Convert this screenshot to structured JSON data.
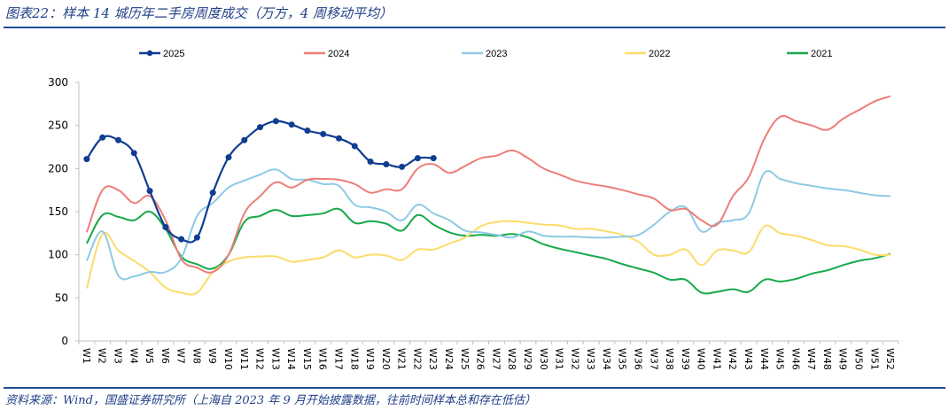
{
  "header": {
    "title": "图表22：样本 14 城历年二手房周度成交（万方，4 周移动平均）"
  },
  "footer": {
    "source": "资料来源：Wind，国盛证券研究所（上海自 2023 年 9 月开始披露数据，往前时间样本总和存在低估）"
  },
  "chart_data": {
    "type": "line",
    "title": "样本 14 城历年二手房周度成交（万方，4 周移动平均）",
    "xlabel": "",
    "ylabel": "",
    "ylim": [
      0,
      300
    ],
    "yticks": [
      0,
      50,
      100,
      150,
      200,
      250,
      300
    ],
    "grid": false,
    "legend_position": "top",
    "categories": [
      "W1",
      "W2",
      "W3",
      "W4",
      "W5",
      "W6",
      "W7",
      "W8",
      "W9",
      "W10",
      "W11",
      "W12",
      "W13",
      "W14",
      "W15",
      "W16",
      "W17",
      "W18",
      "W19",
      "W20",
      "W21",
      "W22",
      "W23",
      "W24",
      "W25",
      "W26",
      "W27",
      "W28",
      "W29",
      "W30",
      "W31",
      "W32",
      "W33",
      "W34",
      "W35",
      "W36",
      "W37",
      "W38",
      "W39",
      "W40",
      "W41",
      "W42",
      "W43",
      "W44",
      "W45",
      "W46",
      "W47",
      "W48",
      "W49",
      "W50",
      "W51",
      "W52"
    ],
    "series": [
      {
        "name": "2025",
        "color": "#0f3d91",
        "markers": true,
        "values": [
          211,
          236,
          233,
          218,
          174,
          132,
          118,
          120,
          172,
          213,
          233,
          248,
          255,
          251,
          244,
          240,
          235,
          226,
          208,
          205,
          202,
          212,
          212
        ]
      },
      {
        "name": "2024",
        "color": "#ee7d78",
        "markers": false,
        "values": [
          126,
          175,
          175,
          160,
          168,
          140,
          95,
          85,
          80,
          100,
          148,
          168,
          184,
          178,
          187,
          188,
          187,
          182,
          172,
          176,
          176,
          200,
          205,
          195,
          203,
          212,
          215,
          221,
          212,
          200,
          193,
          186,
          182,
          179,
          175,
          170,
          165,
          152,
          153,
          140,
          135,
          168,
          190,
          235,
          260,
          255,
          250,
          245,
          258,
          268,
          278,
          284
        ]
      },
      {
        "name": "2023",
        "color": "#8dcae4",
        "markers": false,
        "values": [
          93,
          127,
          76,
          75,
          80,
          80,
          96,
          145,
          160,
          178,
          186,
          193,
          199,
          188,
          187,
          182,
          180,
          158,
          155,
          150,
          140,
          158,
          148,
          140,
          128,
          126,
          123,
          120,
          127,
          122,
          121,
          121,
          120,
          120,
          121,
          123,
          135,
          150,
          155,
          127,
          137,
          140,
          148,
          195,
          188,
          183,
          180,
          177,
          175,
          172,
          169,
          168
        ]
      },
      {
        "name": "2022",
        "color": "#fbdc6a",
        "markers": false,
        "values": [
          61,
          124,
          105,
          93,
          80,
          62,
          56,
          56,
          80,
          92,
          97,
          98,
          98,
          92,
          94,
          97,
          105,
          97,
          100,
          99,
          94,
          106,
          106,
          113,
          120,
          133,
          138,
          139,
          137,
          135,
          134,
          130,
          130,
          127,
          123,
          115,
          100,
          100,
          106,
          88,
          105,
          105,
          103,
          133,
          125,
          122,
          117,
          111,
          110,
          106,
          100,
          100
        ]
      },
      {
        "name": "2021",
        "color": "#16a94a",
        "markers": false,
        "values": [
          113,
          146,
          144,
          140,
          150,
          130,
          98,
          89,
          84,
          100,
          138,
          145,
          152,
          145,
          146,
          148,
          153,
          137,
          139,
          136,
          128,
          146,
          135,
          126,
          122,
          123,
          122,
          124,
          120,
          112,
          107,
          103,
          99,
          95,
          89,
          84,
          79,
          71,
          71,
          56,
          57,
          60,
          57,
          71,
          69,
          72,
          78,
          82,
          88,
          93,
          96,
          101
        ]
      }
    ]
  }
}
